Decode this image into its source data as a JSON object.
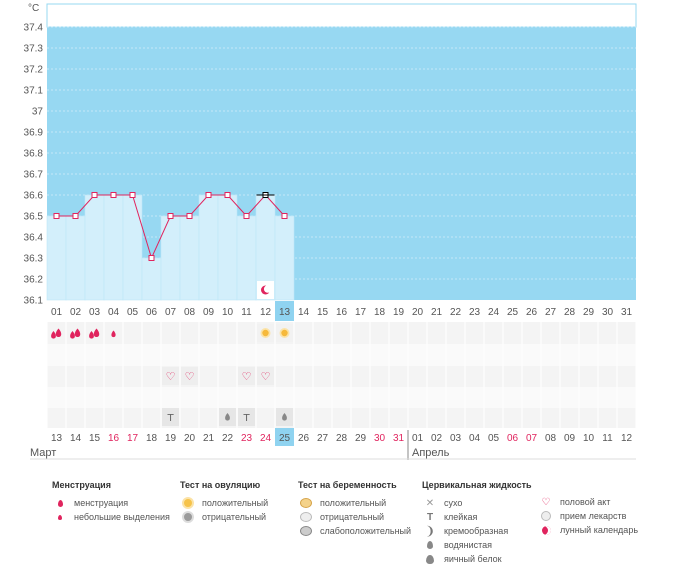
{
  "chart_data": {
    "type": "line",
    "y_unit": "°C",
    "ylim": [
      36.1,
      37.4
    ],
    "y_ticks": [
      "37.4",
      "37.3",
      "37.2",
      "37.1",
      "37",
      "36.9",
      "36.8",
      "36.7",
      "36.6",
      "36.5",
      "36.4",
      "36.3",
      "36.2",
      "36.1"
    ],
    "days": [
      "01",
      "02",
      "03",
      "04",
      "05",
      "06",
      "07",
      "08",
      "09",
      "10",
      "11",
      "12",
      "13",
      "14",
      "15",
      "16",
      "17",
      "18",
      "19",
      "20",
      "21",
      "22",
      "23",
      "24",
      "25",
      "26",
      "27",
      "28",
      "29",
      "30",
      "31"
    ],
    "current_day": "13",
    "temperature": [
      36.5,
      36.5,
      36.6,
      36.6,
      36.6,
      36.3,
      36.5,
      36.5,
      36.6,
      36.6,
      36.5,
      36.6,
      36.5
    ],
    "highlight_point_day": "12",
    "dates": [
      "13",
      "14",
      "15",
      "16",
      "17",
      "18",
      "19",
      "20",
      "21",
      "22",
      "23",
      "24",
      "25",
      "26",
      "27",
      "28",
      "29",
      "30",
      "31",
      "01",
      "02",
      "03",
      "04",
      "05",
      "06",
      "07",
      "08",
      "09",
      "10",
      "11",
      "12"
    ],
    "dates_red": [
      "16",
      "17",
      "23",
      "24",
      "30",
      "31",
      "06",
      "07"
    ],
    "current_date": "25",
    "months": {
      "left": "Март",
      "right": "Апрель"
    },
    "lunar_day": "12",
    "menstruation": {
      "heavy": [
        "01",
        "02",
        "03"
      ],
      "light": [
        "04"
      ]
    },
    "ovulation_positive": [
      "12",
      "13"
    ],
    "intercourse": [
      "07",
      "08",
      "11",
      "12"
    ],
    "cervical": {
      "sticky": [
        "07",
        "11"
      ],
      "watery": [
        "10",
        "13"
      ]
    }
  },
  "colors": {
    "plot_bg": "#97d8f2",
    "bar_fill": "#d3effb",
    "line": "#e0245e",
    "current": "#8fd3f0"
  },
  "legend": {
    "menstruation": {
      "title": "Менструация",
      "items": [
        "менструация",
        "небольшие выделения"
      ]
    },
    "ovulation": {
      "title": "Тест на овуляцию",
      "items": [
        "положительный",
        "отрицательный"
      ]
    },
    "pregnancy": {
      "title": "Тест на беременность",
      "items": [
        "положительный",
        "отрицательный",
        "слабоположительный"
      ]
    },
    "cervical": {
      "title": "Цервикальная жидкость",
      "items": [
        "сухо",
        "клейкая",
        "кремообразная",
        "водянистая",
        "яичный белок"
      ]
    },
    "other": {
      "items": [
        "половой акт",
        "прием лекарств",
        "лунный календарь"
      ]
    }
  }
}
